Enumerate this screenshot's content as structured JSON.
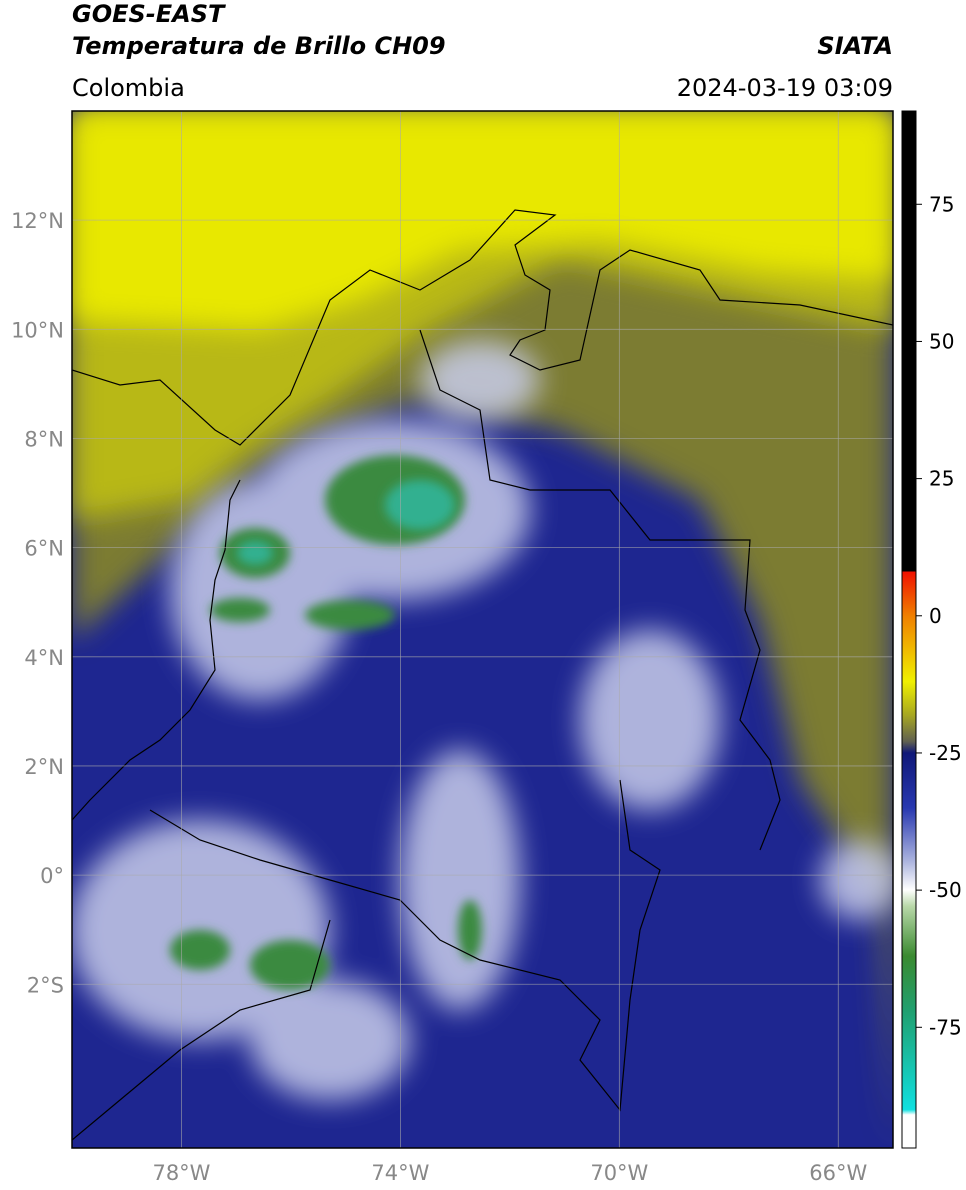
{
  "header": {
    "title_line1": "GOES-EAST",
    "title_line2": "Temperatura de Brillo CH09",
    "source": "SIATA",
    "region": "Colombia",
    "datetime": "2024-03-19 03:09"
  },
  "map": {
    "lon_range": [
      -80,
      -65
    ],
    "lat_range": [
      -5,
      14
    ],
    "lon_ticks": [
      {
        "value": -78,
        "label": "78°W"
      },
      {
        "value": -74,
        "label": "74°W"
      },
      {
        "value": -70,
        "label": "70°W"
      },
      {
        "value": -66,
        "label": "66°W"
      }
    ],
    "lat_ticks": [
      {
        "value": 12,
        "label": "12°N"
      },
      {
        "value": 10,
        "label": "10°N"
      },
      {
        "value": 8,
        "label": "8°N"
      },
      {
        "value": 6,
        "label": "6°N"
      },
      {
        "value": 4,
        "label": "4°N"
      },
      {
        "value": 2,
        "label": "2°N"
      },
      {
        "value": 0,
        "label": "0°"
      },
      {
        "value": -2,
        "label": "2°S"
      }
    ]
  },
  "colorbar": {
    "range": [
      -97,
      92
    ],
    "ticks": [
      75,
      50,
      25,
      0,
      -25,
      -50,
      -75
    ]
  }
}
